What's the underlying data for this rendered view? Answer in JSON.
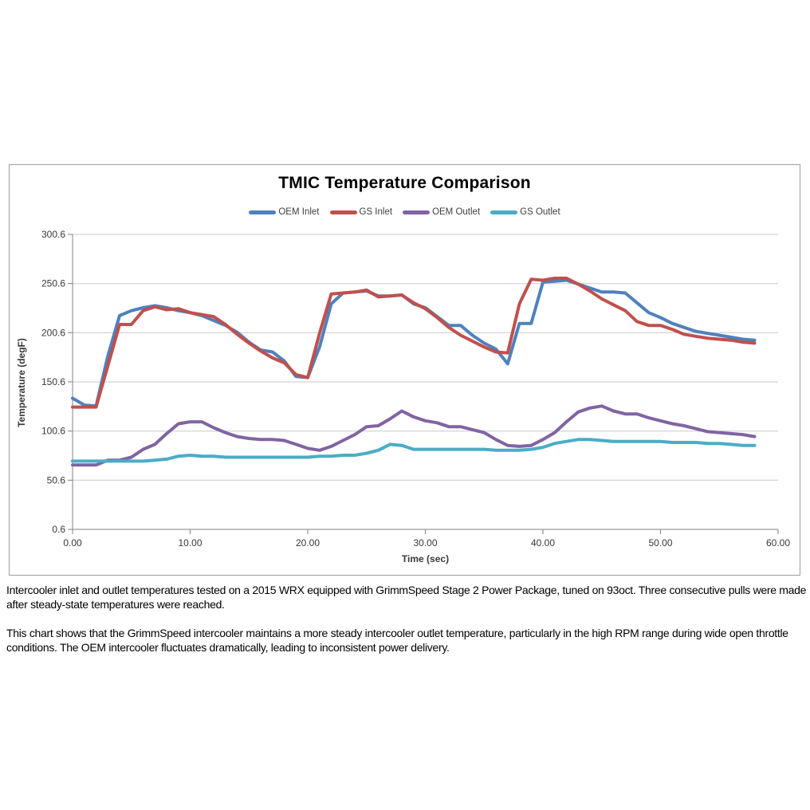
{
  "chart_data": {
    "type": "line",
    "title": "TMIC Temperature Comparison",
    "xlabel": "Time (sec)",
    "ylabel": "Temperature (degF)",
    "xlim": [
      0,
      60
    ],
    "ylim": [
      0.6,
      300.6
    ],
    "x_ticks": [
      0,
      10,
      20,
      30,
      40,
      50,
      60
    ],
    "y_ticks": [
      300.6,
      250.6,
      200.6,
      150.6,
      100.6,
      50.6,
      0.6
    ],
    "grid": "horizontal",
    "legend_position": "top",
    "x_start": 0,
    "x_step": 1,
    "series": [
      {
        "id": "oem-inlet",
        "name": "OEM Inlet",
        "color": "#4F81BD",
        "values": [
          134,
          127,
          126,
          177,
          218,
          223,
          226,
          228,
          226,
          223,
          221,
          218,
          213,
          208,
          201,
          191,
          183,
          181,
          172,
          156,
          155,
          186,
          230,
          241,
          242,
          243,
          238,
          238,
          239,
          230,
          226,
          217,
          208,
          208,
          198,
          190,
          184,
          169,
          210,
          210,
          252,
          253,
          254,
          250,
          246,
          242,
          242,
          241,
          231,
          221,
          216,
          210,
          206,
          202,
          200,
          198,
          196,
          194,
          193
        ]
      },
      {
        "id": "gs-inlet",
        "name": "GS Inlet",
        "color": "#C0504D",
        "values": [
          125,
          125,
          125,
          167,
          209,
          209,
          223,
          227,
          224,
          225,
          221,
          219,
          217,
          209,
          199,
          190,
          182,
          175,
          170,
          158,
          155,
          200,
          240,
          241,
          242,
          244,
          237,
          238,
          239,
          231,
          225,
          216,
          206,
          198,
          192,
          186,
          181,
          180,
          230,
          255,
          254,
          256,
          256,
          250,
          243,
          235,
          229,
          223,
          212,
          208,
          208,
          204,
          199,
          197,
          195,
          194,
          193,
          191,
          190
        ]
      },
      {
        "id": "oem-outlet",
        "name": "OEM Outlet",
        "color": "#8064A2",
        "values": [
          66,
          66,
          66,
          71,
          71,
          74,
          82,
          87,
          98,
          108,
          110,
          110,
          104,
          99,
          95,
          93,
          92,
          92,
          91,
          87,
          83,
          81,
          85,
          91,
          97,
          105,
          106,
          113,
          121,
          115,
          111,
          109,
          105,
          105,
          102,
          99,
          92,
          86,
          85,
          86,
          92,
          99,
          110,
          120,
          124,
          126,
          121,
          118,
          118,
          114,
          111,
          108,
          106,
          103,
          100,
          99,
          98,
          97,
          95
        ]
      },
      {
        "id": "gs-outlet",
        "name": "GS Outlet",
        "color": "#4BACC6",
        "values": [
          70,
          70,
          70,
          70,
          70,
          70,
          70,
          71,
          72,
          75,
          76,
          75,
          75,
          74,
          74,
          74,
          74,
          74,
          74,
          74,
          74,
          75,
          75,
          76,
          76,
          78,
          81,
          87,
          86,
          82,
          82,
          82,
          82,
          82,
          82,
          82,
          81,
          81,
          81,
          82,
          84,
          88,
          90,
          92,
          92,
          91,
          90,
          90,
          90,
          90,
          90,
          89,
          89,
          89,
          88,
          88,
          87,
          86,
          86
        ]
      }
    ]
  },
  "caption": {
    "paragraph1": "Intercooler inlet and outlet temperatures tested on a 2015 WRX equipped with GrimmSpeed Stage 2 Power Package, tuned on 93oct. Three consecutive pulls were made after steady-state temperatures were reached.",
    "paragraph2": "This chart shows that the GrimmSpeed intercooler maintains a more steady intercooler outlet temperature, particularly in the high RPM range during wide open throttle conditions. The OEM intercooler fluctuates dramatically, leading to inconsistent power delivery."
  }
}
